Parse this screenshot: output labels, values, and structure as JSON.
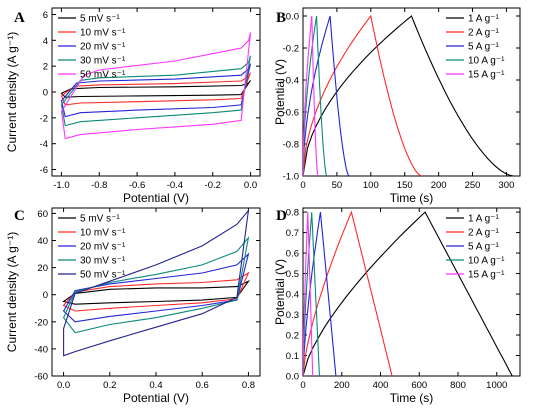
{
  "chart_data": [
    {
      "panel_label": "A",
      "type": "line",
      "subtype": "cyclic-voltammetry",
      "xlabel": "Potential (V)",
      "ylabel": "Current density (A g⁻¹)",
      "xlim": [
        -1.05,
        0.05
      ],
      "ylim": [
        -6.5,
        6.5
      ],
      "xticks": [
        "-1.0",
        "-0.8",
        "-0.6",
        "-0.4",
        "-0.2",
        "0.0"
      ],
      "yticks": [
        "-6",
        "-4",
        "-2",
        "0",
        "2",
        "4",
        "6"
      ],
      "legend_position": "top-left",
      "series": [
        {
          "name": "5 mV s⁻¹",
          "color": "#000000",
          "upper": [
            [
              -1.0,
              -0.1
            ],
            [
              -0.95,
              0.25
            ],
            [
              -0.8,
              0.35
            ],
            [
              -0.4,
              0.4
            ],
            [
              -0.05,
              0.5
            ],
            [
              -0.01,
              0.7
            ],
            [
              0.0,
              0.9
            ]
          ],
          "lower": [
            [
              0.0,
              0.2
            ],
            [
              -0.05,
              -0.2
            ],
            [
              -0.2,
              -0.25
            ],
            [
              -0.6,
              -0.3
            ],
            [
              -0.9,
              -0.35
            ],
            [
              -0.98,
              -0.4
            ],
            [
              -1.0,
              -0.1
            ]
          ]
        },
        {
          "name": "10 mV s⁻¹",
          "color": "#ff2a2a",
          "upper": [
            [
              -1.0,
              -0.3
            ],
            [
              -0.93,
              0.45
            ],
            [
              -0.8,
              0.55
            ],
            [
              -0.4,
              0.65
            ],
            [
              -0.05,
              0.85
            ],
            [
              -0.01,
              1.2
            ],
            [
              0.0,
              1.5
            ]
          ],
          "lower": [
            [
              0.0,
              0.4
            ],
            [
              -0.05,
              -0.5
            ],
            [
              -0.2,
              -0.6
            ],
            [
              -0.6,
              -0.75
            ],
            [
              -0.9,
              -0.85
            ],
            [
              -0.98,
              -1.0
            ],
            [
              -1.0,
              -0.3
            ]
          ]
        },
        {
          "name": "20 mV s⁻¹",
          "color": "#2424d8",
          "upper": [
            [
              -1.0,
              -0.7
            ],
            [
              -0.92,
              0.7
            ],
            [
              -0.8,
              0.85
            ],
            [
              -0.4,
              1.0
            ],
            [
              -0.05,
              1.3
            ],
            [
              -0.01,
              1.8
            ],
            [
              0.0,
              2.2
            ]
          ],
          "lower": [
            [
              0.0,
              0.6
            ],
            [
              -0.05,
              -1.0
            ],
            [
              -0.2,
              -1.2
            ],
            [
              -0.6,
              -1.4
            ],
            [
              -0.9,
              -1.6
            ],
            [
              -0.98,
              -1.9
            ],
            [
              -1.0,
              -0.7
            ]
          ]
        },
        {
          "name": "30 mV s⁻¹",
          "color": "#0a8a7a",
          "upper": [
            [
              -1.0,
              -1.0
            ],
            [
              -0.9,
              0.9
            ],
            [
              -0.8,
              1.1
            ],
            [
              -0.4,
              1.3
            ],
            [
              -0.05,
              1.8
            ],
            [
              -0.01,
              2.3
            ],
            [
              0.0,
              2.8
            ]
          ],
          "lower": [
            [
              0.0,
              0.9
            ],
            [
              -0.05,
              -1.4
            ],
            [
              -0.2,
              -1.6
            ],
            [
              -0.6,
              -2.0
            ],
            [
              -0.9,
              -2.3
            ],
            [
              -0.98,
              -2.6
            ],
            [
              -1.0,
              -1.0
            ]
          ]
        },
        {
          "name": "50 mV s⁻¹",
          "color": "#ff33ff",
          "upper": [
            [
              -1.0,
              -1.5
            ],
            [
              -0.88,
              1.3
            ],
            [
              -0.8,
              1.7
            ],
            [
              -0.4,
              2.4
            ],
            [
              -0.05,
              3.4
            ],
            [
              -0.01,
              4.0
            ],
            [
              0.0,
              4.6
            ]
          ],
          "lower": [
            [
              0.0,
              1.4
            ],
            [
              -0.05,
              -2.2
            ],
            [
              -0.2,
              -2.5
            ],
            [
              -0.6,
              -2.9
            ],
            [
              -0.9,
              -3.3
            ],
            [
              -0.98,
              -3.6
            ],
            [
              -1.0,
              -1.5
            ]
          ]
        }
      ]
    },
    {
      "panel_label": "B",
      "type": "line",
      "subtype": "galvanostatic-charge-discharge",
      "xlabel": "Time (s)",
      "ylabel": "Potential (V)",
      "xlim": [
        0,
        320
      ],
      "ylim": [
        -1.0,
        0.05
      ],
      "xticks": [
        "0",
        "50",
        "100",
        "150",
        "200",
        "250",
        "300"
      ],
      "yticks": [
        "-1.0",
        "-0.8",
        "-0.6",
        "-0.4",
        "-0.2",
        "0.0"
      ],
      "legend_position": "top-right",
      "series": [
        {
          "name": "1 A g⁻¹",
          "color": "#000000",
          "peak_time": 160,
          "end_time": 310
        },
        {
          "name": "2 A g⁻¹",
          "color": "#ff2a2a",
          "peak_time": 100,
          "end_time": 175
        },
        {
          "name": "5 A g⁻¹",
          "color": "#2424d8",
          "peak_time": 40,
          "end_time": 68
        },
        {
          "name": "10 A g⁻¹",
          "color": "#0a8a7a",
          "peak_time": 20,
          "end_time": 35
        },
        {
          "name": "15 A g⁻¹",
          "color": "#ff33ff",
          "peak_time": 13,
          "end_time": 22
        }
      ]
    },
    {
      "panel_label": "C",
      "type": "line",
      "subtype": "cyclic-voltammetry",
      "xlabel": "Potential (V)",
      "ylabel": "Current density (A g⁻¹)",
      "xlim": [
        -0.05,
        0.85
      ],
      "ylim": [
        -60,
        64
      ],
      "xticks": [
        "0.0",
        "0.2",
        "0.4",
        "0.6",
        "0.8"
      ],
      "yticks": [
        "-60",
        "-40",
        "-20",
        "0",
        "20",
        "40",
        "60"
      ],
      "legend_position": "top-left",
      "series": [
        {
          "name": "5 mV s⁻¹",
          "color": "#000000",
          "upper": [
            [
              0.0,
              -5
            ],
            [
              0.05,
              1
            ],
            [
              0.2,
              4
            ],
            [
              0.4,
              5
            ],
            [
              0.6,
              5
            ],
            [
              0.75,
              6
            ],
            [
              0.8,
              10
            ]
          ],
          "lower": [
            [
              0.8,
              6
            ],
            [
              0.75,
              -2
            ],
            [
              0.6,
              -4
            ],
            [
              0.4,
              -5
            ],
            [
              0.2,
              -6
            ],
            [
              0.05,
              -7
            ],
            [
              0.0,
              -5
            ]
          ]
        },
        {
          "name": "10 mV s⁻¹",
          "color": "#ff2a2a",
          "upper": [
            [
              0.0,
              -8
            ],
            [
              0.05,
              2
            ],
            [
              0.2,
              6
            ],
            [
              0.4,
              8
            ],
            [
              0.6,
              9
            ],
            [
              0.75,
              11
            ],
            [
              0.8,
              16
            ]
          ],
          "lower": [
            [
              0.8,
              10
            ],
            [
              0.75,
              -3
            ],
            [
              0.6,
              -6
            ],
            [
              0.4,
              -8
            ],
            [
              0.2,
              -10
            ],
            [
              0.05,
              -12
            ],
            [
              0.0,
              -8
            ]
          ]
        },
        {
          "name": "20 mV s⁻¹",
          "color": "#2424d8",
          "upper": [
            [
              0.0,
              -12
            ],
            [
              0.05,
              3
            ],
            [
              0.2,
              8
            ],
            [
              0.4,
              12
            ],
            [
              0.6,
              16
            ],
            [
              0.75,
              22
            ],
            [
              0.8,
              30
            ]
          ],
          "lower": [
            [
              0.8,
              22
            ],
            [
              0.75,
              -4
            ],
            [
              0.6,
              -8
            ],
            [
              0.4,
              -12
            ],
            [
              0.2,
              -16
            ],
            [
              0.05,
              -20
            ],
            [
              0.0,
              -12
            ]
          ]
        },
        {
          "name": "30 mV s⁻¹",
          "color": "#0a8a7a",
          "upper": [
            [
              0.0,
              -17
            ],
            [
              0.05,
              2
            ],
            [
              0.2,
              9
            ],
            [
              0.4,
              15
            ],
            [
              0.6,
              22
            ],
            [
              0.75,
              32
            ],
            [
              0.8,
              42
            ]
          ],
          "lower": [
            [
              0.8,
              30
            ],
            [
              0.75,
              -4
            ],
            [
              0.6,
              -10
            ],
            [
              0.4,
              -17
            ],
            [
              0.2,
              -22
            ],
            [
              0.05,
              -28
            ],
            [
              0.0,
              -17
            ]
          ]
        },
        {
          "name": "50 mV s⁻¹",
          "color": "#242490",
          "upper": [
            [
              0.0,
              -25
            ],
            [
              0.05,
              1
            ],
            [
              0.2,
              10
            ],
            [
              0.4,
              22
            ],
            [
              0.6,
              36
            ],
            [
              0.75,
              52
            ],
            [
              0.8,
              62
            ]
          ],
          "lower": [
            [
              0.8,
              45
            ],
            [
              0.75,
              -2
            ],
            [
              0.6,
              -14
            ],
            [
              0.4,
              -24
            ],
            [
              0.2,
              -34
            ],
            [
              0.05,
              -42
            ],
            [
              0.0,
              -45
            ]
          ]
        }
      ]
    },
    {
      "panel_label": "D",
      "type": "line",
      "subtype": "galvanostatic-charge-discharge",
      "xlabel": "Time (s)",
      "ylabel": "Potential (V)",
      "xlim": [
        0,
        1120
      ],
      "ylim": [
        0,
        0.82
      ],
      "xticks": [
        "0",
        "200",
        "400",
        "600",
        "800",
        "1000"
      ],
      "yticks": [
        "0.0",
        "0.1",
        "0.2",
        "0.3",
        "0.4",
        "0.5",
        "0.6",
        "0.7",
        "0.8"
      ],
      "legend_position": "top-right",
      "series": [
        {
          "name": "1 A g⁻¹",
          "color": "#000000",
          "peak_time": 630,
          "end_time": 1080
        },
        {
          "name": "2 A g⁻¹",
          "color": "#ff2a2a",
          "peak_time": 250,
          "end_time": 460
        },
        {
          "name": "5 A g⁻¹",
          "color": "#2424d8",
          "peak_time": 90,
          "end_time": 170
        },
        {
          "name": "10 A g⁻¹",
          "color": "#0a8a7a",
          "peak_time": 45,
          "end_time": 85
        },
        {
          "name": "15 A g⁻¹",
          "color": "#ff33ff",
          "peak_time": 25,
          "end_time": 50
        }
      ]
    }
  ]
}
